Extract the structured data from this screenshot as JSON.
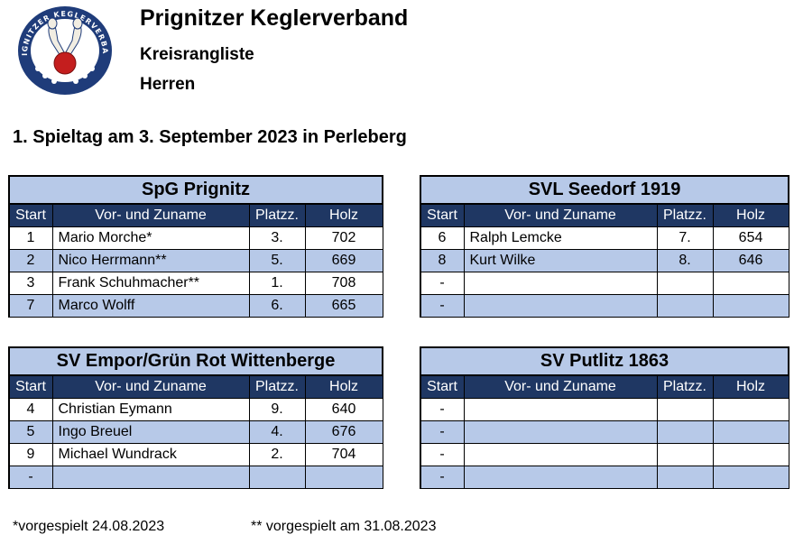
{
  "logo": {
    "ring_text": "PRIGNITZER KEGLERVERBAND",
    "colors": {
      "ring": "#1f3c7a",
      "inner": "#ffffff",
      "ball": "#c41e1e"
    }
  },
  "header": {
    "title": "Prignitzer Keglerverband",
    "subtitle1": "Kreisrangliste",
    "subtitle2": "Herren"
  },
  "spieltag": "1. Spieltag am 3. September 2023 in Perleberg",
  "columns": {
    "start": "Start",
    "name": "Vor- und Zuname",
    "platz": "Platzz.",
    "holz": "Holz"
  },
  "teams": [
    {
      "name": "SpG Prignitz",
      "rows": [
        {
          "start": "1",
          "name": "Mario Morche*",
          "platz": "3.",
          "holz": "702"
        },
        {
          "start": "2",
          "name": "Nico Herrmann**",
          "platz": "5.",
          "holz": "669"
        },
        {
          "start": "3",
          "name": "Frank Schuhmacher**",
          "platz": "1.",
          "holz": "708"
        },
        {
          "start": "7",
          "name": "Marco Wolff",
          "platz": "6.",
          "holz": "665"
        }
      ]
    },
    {
      "name": "SVL Seedorf 1919",
      "rows": [
        {
          "start": "6",
          "name": "Ralph Lemcke",
          "platz": "7.",
          "holz": "654"
        },
        {
          "start": "8",
          "name": "Kurt Wilke",
          "platz": "8.",
          "holz": "646"
        },
        {
          "start": "-",
          "name": "",
          "platz": "",
          "holz": ""
        },
        {
          "start": "-",
          "name": "",
          "platz": "",
          "holz": ""
        }
      ]
    },
    {
      "name": "SV Empor/Grün Rot Wittenberge",
      "rows": [
        {
          "start": "4",
          "name": "Christian Eymann",
          "platz": "9.",
          "holz": "640"
        },
        {
          "start": "5",
          "name": "Ingo Breuel",
          "platz": "4.",
          "holz": "676"
        },
        {
          "start": "9",
          "name": "Michael Wundrack",
          "platz": "2.",
          "holz": "704"
        },
        {
          "start": "-",
          "name": "",
          "platz": "",
          "holz": ""
        }
      ]
    },
    {
      "name": "SV Putlitz 1863",
      "rows": [
        {
          "start": "-",
          "name": "",
          "platz": "",
          "holz": ""
        },
        {
          "start": "-",
          "name": "",
          "platz": "",
          "holz": ""
        },
        {
          "start": "-",
          "name": "",
          "platz": "",
          "holz": ""
        },
        {
          "start": "-",
          "name": "",
          "platz": "",
          "holz": ""
        }
      ]
    }
  ],
  "footnotes": {
    "note1": "*vorgespielt 24.08.2023",
    "note2": "** vorgespielt am 31.08.2023"
  }
}
